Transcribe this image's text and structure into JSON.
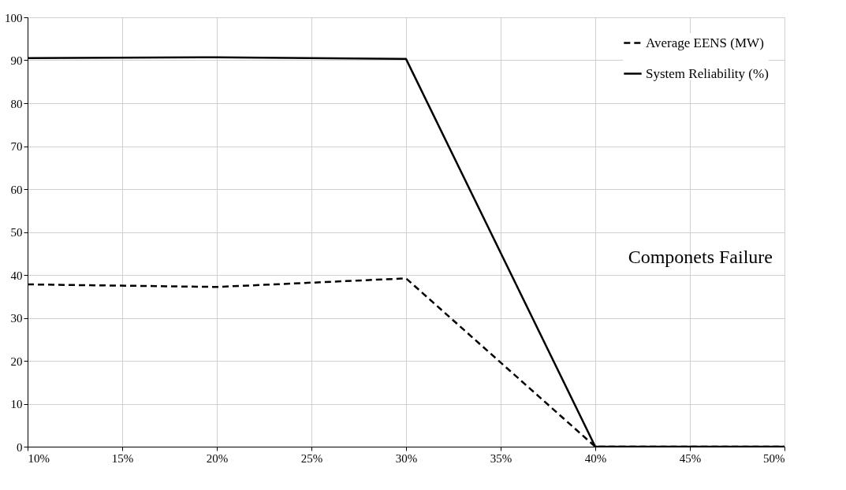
{
  "chart_data": {
    "type": "line",
    "x": [
      10,
      20,
      30,
      40,
      50
    ],
    "series": [
      {
        "name": "Average EENS (MW)",
        "color": "#000000",
        "line_style": "dashed",
        "values": [
          37.8,
          37.2,
          39.2,
          0,
          0
        ]
      },
      {
        "name": "System Reliability (%)",
        "color": "#000000",
        "line_style": "solid",
        "values": [
          90.5,
          90.7,
          90.3,
          0,
          0
        ]
      }
    ],
    "xlim": [
      10,
      50
    ],
    "xticks": [
      {
        "value": 10,
        "label": "10%"
      },
      {
        "value": 15,
        "label": "15%"
      },
      {
        "value": 20,
        "label": "20%"
      },
      {
        "value": 25,
        "label": "25%"
      },
      {
        "value": 30,
        "label": "30%"
      },
      {
        "value": 35,
        "label": "35%"
      },
      {
        "value": 40,
        "label": "40%"
      },
      {
        "value": 45,
        "label": "45%"
      },
      {
        "value": 50,
        "label": "50%"
      }
    ],
    "ylim": [
      0,
      100
    ],
    "yticks": [
      0,
      10,
      20,
      30,
      40,
      50,
      60,
      70,
      80,
      90,
      100
    ],
    "grid": true,
    "legend": "top right",
    "marker": "none",
    "annotations": [
      "Componets Failure"
    ]
  }
}
